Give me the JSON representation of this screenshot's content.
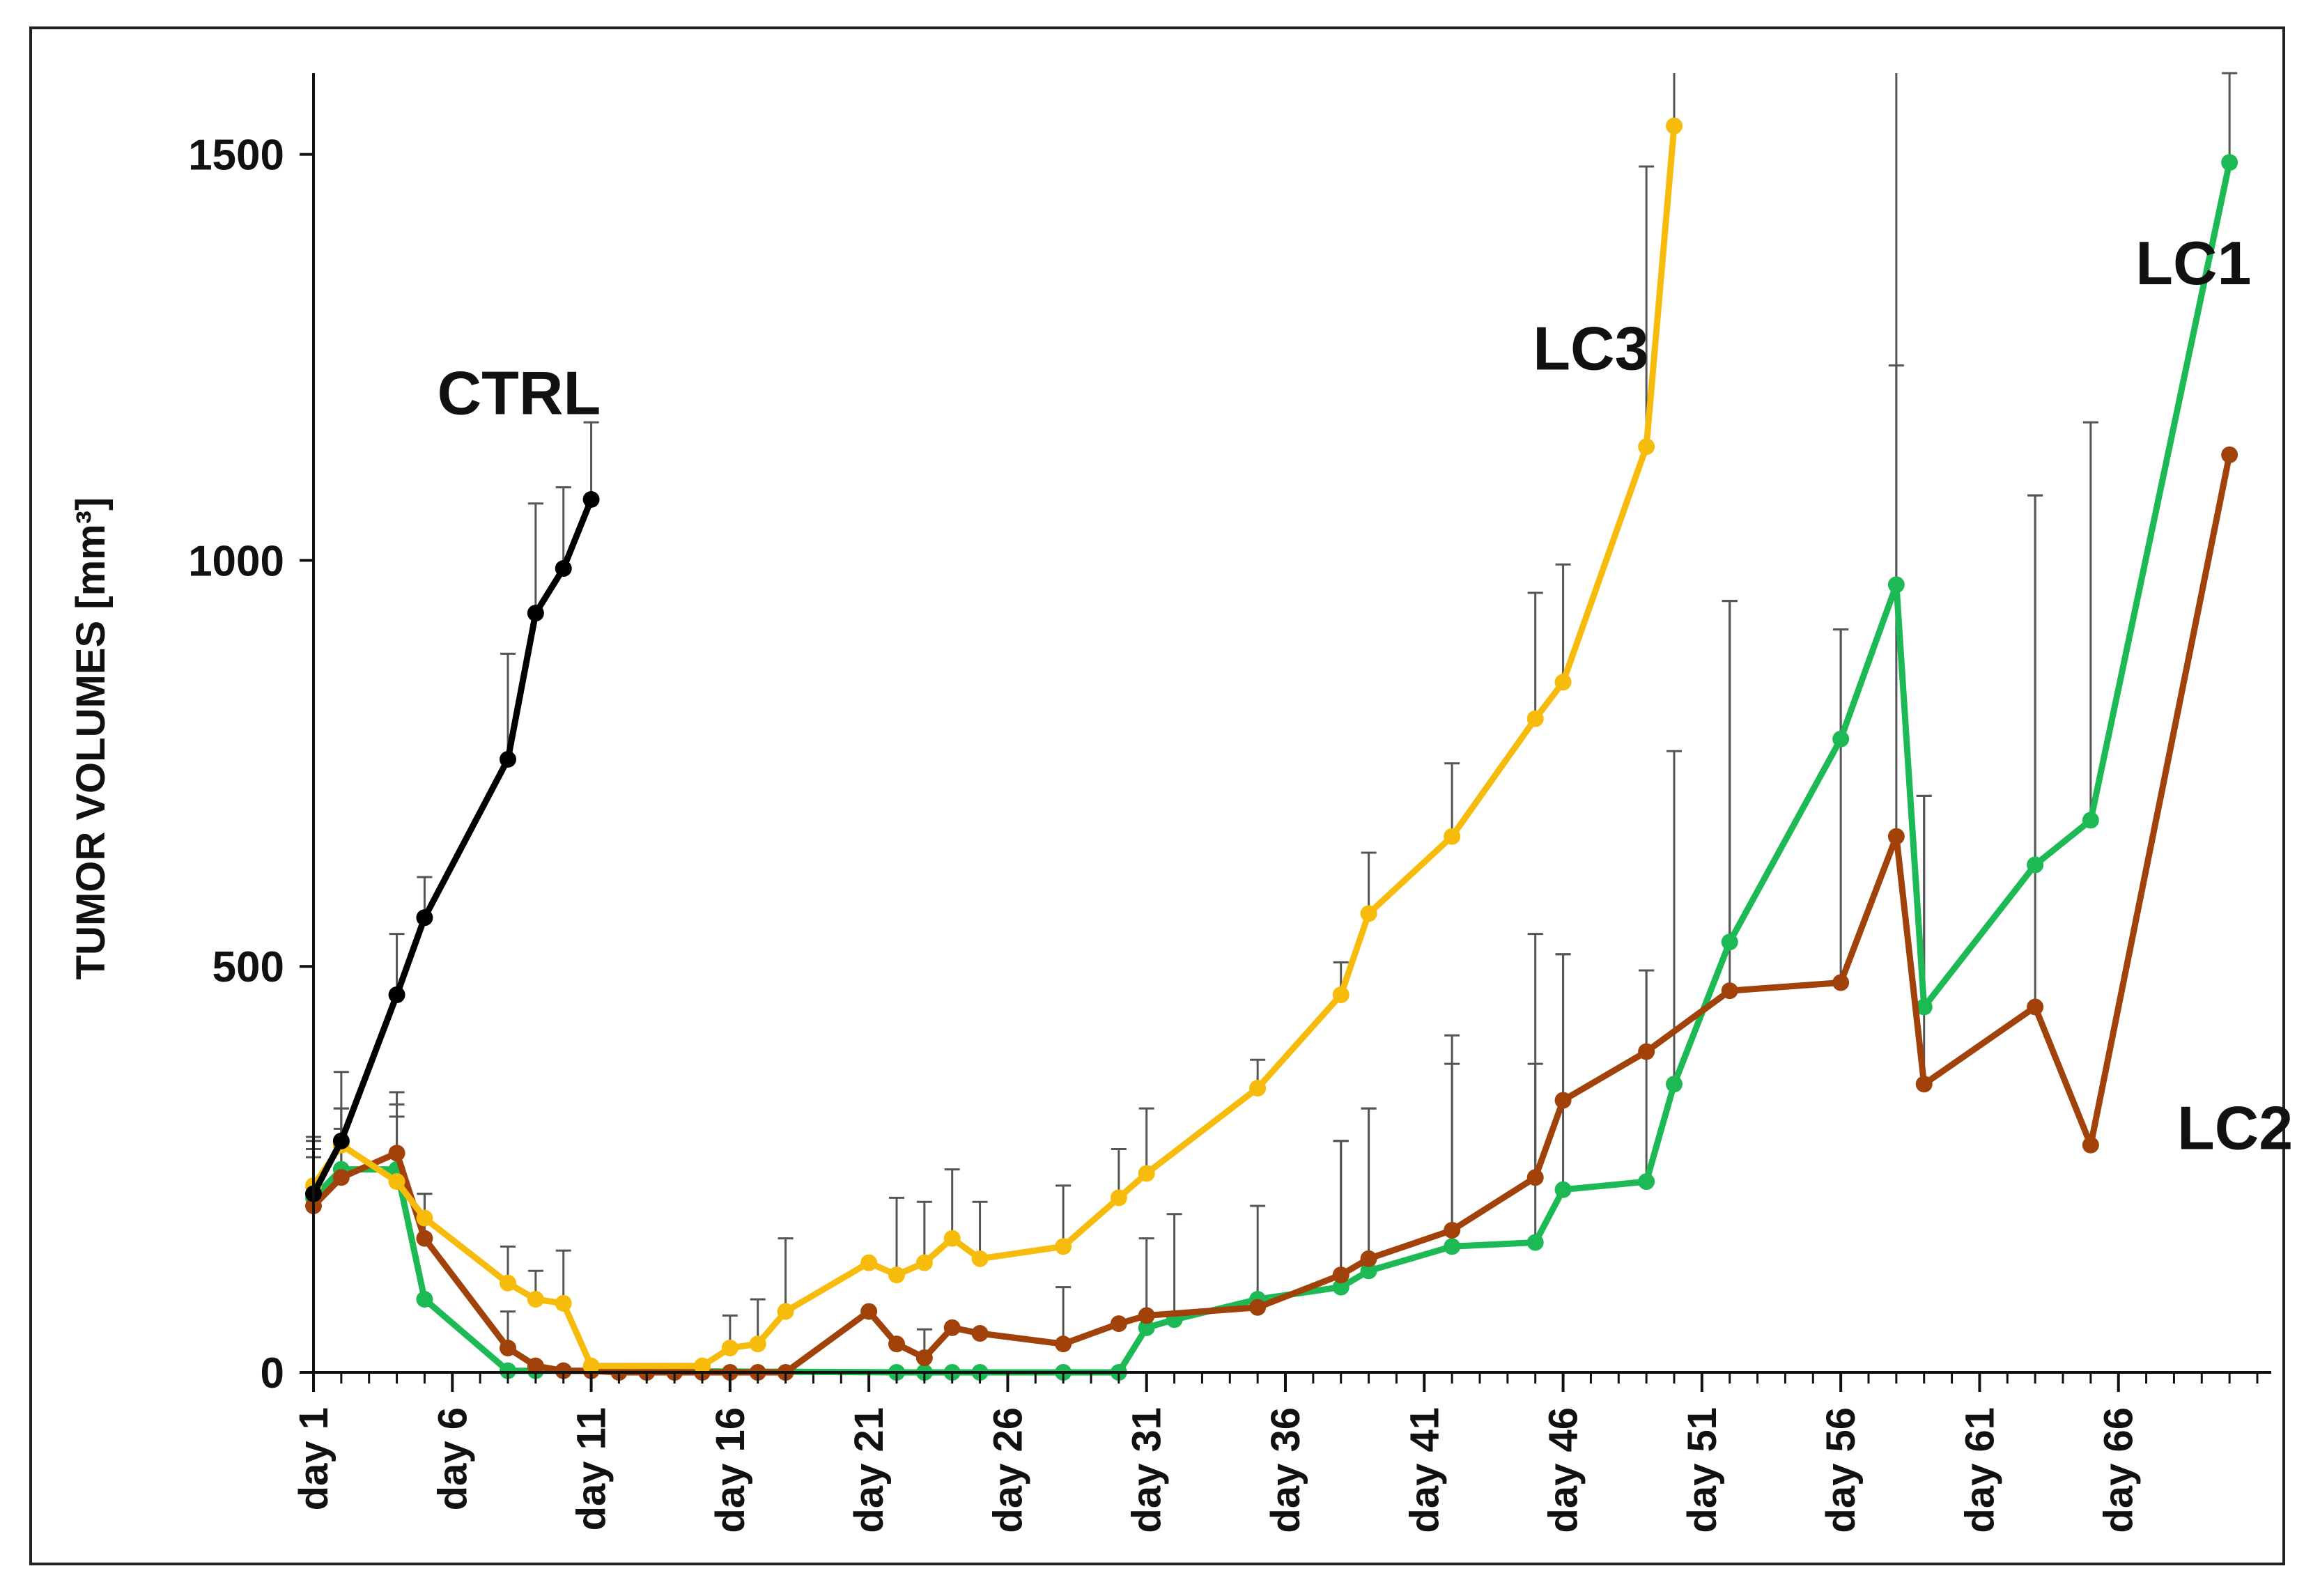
{
  "chart_data": {
    "type": "line",
    "title": "",
    "xlabel": "",
    "ylabel": "TUMOR VOLUMES [mm³]",
    "xlim": [
      1,
      71
    ],
    "ylim": [
      0,
      1600
    ],
    "x_tick_values": [
      1,
      6,
      11,
      16,
      21,
      26,
      31,
      36,
      41,
      46,
      51,
      56,
      61,
      66
    ],
    "x_tick_labels": [
      "day 1",
      "day 6",
      "day 11",
      "day 16",
      "day 21",
      "day 26",
      "day 31",
      "day 36",
      "day 41",
      "day 46",
      "day 51",
      "day 56",
      "day 61",
      "day 66"
    ],
    "y_ticks": [
      0,
      500,
      1000,
      1500
    ],
    "grid": false,
    "legend": "series labeled directly on the plot",
    "series": [
      {
        "name": "CTRL",
        "color": "#000000",
        "label_position": {
          "x": 8.4,
          "y": 1180
        },
        "points": [
          {
            "x": 1,
            "y": 220,
            "err": 70
          },
          {
            "x": 2,
            "y": 285,
            "err": 40
          },
          {
            "x": 4,
            "y": 465,
            "err": 75
          },
          {
            "x": 5,
            "y": 560,
            "err": 50
          },
          {
            "x": 8,
            "y": 755,
            "err": 130
          },
          {
            "x": 9,
            "y": 935,
            "err": 135
          },
          {
            "x": 10,
            "y": 990,
            "err": 100
          },
          {
            "x": 11,
            "y": 1075,
            "err": 95
          }
        ]
      },
      {
        "name": "LC1",
        "color": "#1db954",
        "label_position": {
          "x": 68.7,
          "y": 1340
        },
        "points": [
          {
            "x": 1,
            "y": 215,
            "err": 50
          },
          {
            "x": 2,
            "y": 250,
            "err": 50
          },
          {
            "x": 4,
            "y": 250,
            "err": 80
          },
          {
            "x": 5,
            "y": 90,
            "err": 0
          },
          {
            "x": 8,
            "y": 2,
            "err": 0
          },
          {
            "x": 9,
            "y": 2,
            "err": 0
          },
          {
            "x": 10,
            "y": 2,
            "err": 0
          },
          {
            "x": 11,
            "y": 2,
            "err": 0
          },
          {
            "x": 22,
            "y": 0,
            "err": 0
          },
          {
            "x": 23,
            "y": 0,
            "err": 0
          },
          {
            "x": 24,
            "y": 0,
            "err": 0
          },
          {
            "x": 25,
            "y": 0,
            "err": 0
          },
          {
            "x": 28,
            "y": 0,
            "err": 0
          },
          {
            "x": 30,
            "y": 0,
            "err": 0
          },
          {
            "x": 31,
            "y": 55,
            "err": 110
          },
          {
            "x": 32,
            "y": 65,
            "err": 130
          },
          {
            "x": 35,
            "y": 90,
            "err": 115
          },
          {
            "x": 38,
            "y": 105,
            "err": 180
          },
          {
            "x": 39,
            "y": 125,
            "err": 200
          },
          {
            "x": 42,
            "y": 155,
            "err": 225
          },
          {
            "x": 45,
            "y": 160,
            "err": 220
          },
          {
            "x": 46,
            "y": 225,
            "err": 290
          },
          {
            "x": 49,
            "y": 235,
            "err": 260
          },
          {
            "x": 50,
            "y": 355,
            "err": 410
          },
          {
            "x": 52,
            "y": 530,
            "err": 420
          },
          {
            "x": 56,
            "y": 780,
            "err": 135
          },
          {
            "x": 58,
            "y": 970,
            "err": 640
          },
          {
            "x": 59,
            "y": 450,
            "err": 260
          },
          {
            "x": 63,
            "y": 625,
            "err": 455
          },
          {
            "x": 65,
            "y": 680,
            "err": 490
          },
          {
            "x": 70,
            "y": 1490,
            "err": 110
          }
        ]
      },
      {
        "name": "LC2",
        "color": "#a0420a",
        "label_position": {
          "x": 70.2,
          "y": 275
        },
        "points": [
          {
            "x": 1,
            "y": 205,
            "err": 70
          },
          {
            "x": 2,
            "y": 240,
            "err": 85
          },
          {
            "x": 4,
            "y": 270,
            "err": 75
          },
          {
            "x": 5,
            "y": 165,
            "err": 55
          },
          {
            "x": 8,
            "y": 30,
            "err": 45
          },
          {
            "x": 9,
            "y": 8,
            "err": 0
          },
          {
            "x": 10,
            "y": 2,
            "err": 0
          },
          {
            "x": 11,
            "y": 2,
            "err": 0
          },
          {
            "x": 12,
            "y": 0,
            "err": 0
          },
          {
            "x": 13,
            "y": 0,
            "err": 0
          },
          {
            "x": 14,
            "y": 0,
            "err": 0
          },
          {
            "x": 15,
            "y": 0,
            "err": 0
          },
          {
            "x": 16,
            "y": 0,
            "err": 0
          },
          {
            "x": 17,
            "y": 0,
            "err": 0
          },
          {
            "x": 18,
            "y": 0,
            "err": 0
          },
          {
            "x": 21,
            "y": 75,
            "err": 0
          },
          {
            "x": 22,
            "y": 35,
            "err": 0
          },
          {
            "x": 23,
            "y": 18,
            "err": 35
          },
          {
            "x": 24,
            "y": 55,
            "err": 0
          },
          {
            "x": 25,
            "y": 48,
            "err": 0
          },
          {
            "x": 28,
            "y": 35,
            "err": 70
          },
          {
            "x": 30,
            "y": 60,
            "err": 0
          },
          {
            "x": 31,
            "y": 70,
            "err": 0
          },
          {
            "x": 35,
            "y": 80,
            "err": 0
          },
          {
            "x": 38,
            "y": 120,
            "err": 165
          },
          {
            "x": 39,
            "y": 140,
            "err": 185
          },
          {
            "x": 42,
            "y": 175,
            "err": 240
          },
          {
            "x": 45,
            "y": 240,
            "err": 300
          },
          {
            "x": 46,
            "y": 335,
            "err": 180
          },
          {
            "x": 49,
            "y": 395,
            "err": 100
          },
          {
            "x": 52,
            "y": 470,
            "err": 480
          },
          {
            "x": 56,
            "y": 480,
            "err": 435
          },
          {
            "x": 58,
            "y": 660,
            "err": 580
          },
          {
            "x": 59,
            "y": 355,
            "err": 355
          },
          {
            "x": 63,
            "y": 450,
            "err": 630
          },
          {
            "x": 65,
            "y": 280,
            "err": 0
          },
          {
            "x": 70,
            "y": 1130,
            "err": 0
          }
        ]
      },
      {
        "name": "LC3",
        "color": "#f7bb0c",
        "label_position": {
          "x": 47.0,
          "y": 1235
        },
        "points": [
          {
            "x": 1,
            "y": 230,
            "err": 55
          },
          {
            "x": 2,
            "y": 280,
            "err": 90
          },
          {
            "x": 4,
            "y": 235,
            "err": 80
          },
          {
            "x": 5,
            "y": 190,
            "err": 30
          },
          {
            "x": 8,
            "y": 110,
            "err": 45
          },
          {
            "x": 9,
            "y": 90,
            "err": 35
          },
          {
            "x": 10,
            "y": 85,
            "err": 65
          },
          {
            "x": 11,
            "y": 8,
            "err": 0
          },
          {
            "x": 15,
            "y": 8,
            "err": 0
          },
          {
            "x": 16,
            "y": 30,
            "err": 40
          },
          {
            "x": 17,
            "y": 35,
            "err": 55
          },
          {
            "x": 18,
            "y": 75,
            "err": 90
          },
          {
            "x": 21,
            "y": 135,
            "err": 0
          },
          {
            "x": 22,
            "y": 120,
            "err": 95
          },
          {
            "x": 23,
            "y": 135,
            "err": 75
          },
          {
            "x": 24,
            "y": 165,
            "err": 85
          },
          {
            "x": 25,
            "y": 140,
            "err": 70
          },
          {
            "x": 28,
            "y": 155,
            "err": 75
          },
          {
            "x": 30,
            "y": 215,
            "err": 60
          },
          {
            "x": 31,
            "y": 245,
            "err": 80
          },
          {
            "x": 35,
            "y": 350,
            "err": 35
          },
          {
            "x": 38,
            "y": 465,
            "err": 40
          },
          {
            "x": 39,
            "y": 565,
            "err": 75
          },
          {
            "x": 42,
            "y": 660,
            "err": 90
          },
          {
            "x": 45,
            "y": 805,
            "err": 155
          },
          {
            "x": 46,
            "y": 850,
            "err": 145
          },
          {
            "x": 49,
            "y": 1140,
            "err": 345
          },
          {
            "x": 50,
            "y": 1535,
            "err": 75
          }
        ]
      }
    ]
  }
}
